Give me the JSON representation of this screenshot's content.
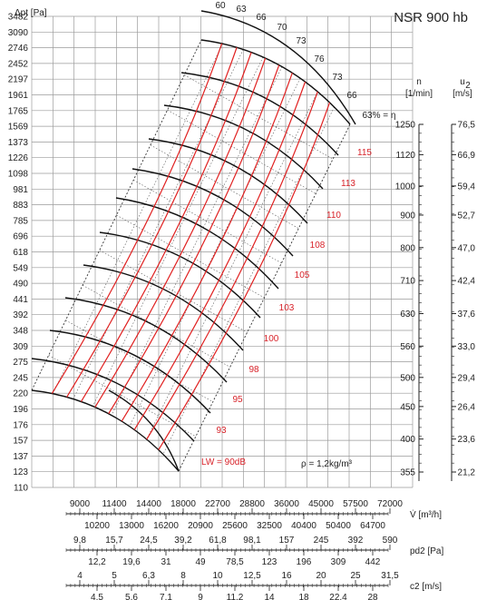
{
  "chart_data": {
    "type": "line",
    "title": "NSR 900 hb",
    "ylabel_left": "Δpt [Pa]",
    "yticks_left": [
      "3482",
      "3090",
      "2746",
      "2452",
      "2197",
      "1961",
      "1765",
      "1569",
      "1373",
      "1226",
      "1098",
      "981",
      "883",
      "785",
      "696",
      "618",
      "549",
      "490",
      "441",
      "392",
      "348",
      "309",
      "275",
      "245",
      "220",
      "196",
      "176",
      "157",
      "137",
      "123",
      "110"
    ],
    "right_axis_n": {
      "label_line1": "n",
      "label_line2": "[1/min]",
      "ticks": [
        "1250",
        "1120",
        "1000",
        "900",
        "800",
        "710",
        "630",
        "560",
        "500",
        "450",
        "400",
        "355"
      ]
    },
    "right_axis_u2": {
      "label_line1": "u",
      "label_sub": "2",
      "label_line2": "[m/s]",
      "ticks": [
        "76,5",
        "66,9",
        "59,4",
        "52,7",
        "47,0",
        "42,4",
        "37,6",
        "33,0",
        "29,4",
        "26,4",
        "23,6",
        "21,2"
      ]
    },
    "efficiency_labels": [
      "60",
      "63",
      "66",
      "70",
      "73",
      "76",
      "73",
      "66",
      "63% = η"
    ],
    "sound_labels": [
      "115",
      "113",
      "110",
      "108",
      "105",
      "103",
      "100",
      "98",
      "95",
      "93"
    ],
    "sound_base_label": "LW = 90dB",
    "density_label": "ρ = 1,2kg/m³",
    "flow_axis": {
      "label": "V̇ [m³/h]",
      "top": [
        "9000",
        "11400",
        "14400",
        "18000",
        "22700",
        "28800",
        "36000",
        "45000",
        "57500",
        "72000"
      ],
      "bottom": [
        "10200",
        "13000",
        "16200",
        "20900",
        "25600",
        "32500",
        "40400",
        "50400",
        "64700"
      ]
    },
    "pd_axis": {
      "label": "pd2 [Pa]",
      "top": [
        "9,8",
        "15,7",
        "24,5",
        "39,2",
        "61,8",
        "98,1",
        "157",
        "245",
        "392",
        "590"
      ],
      "bottom": [
        "12,2",
        "19,6",
        "31",
        "49",
        "78,5",
        "123",
        "196",
        "309",
        "442"
      ]
    },
    "c2_axis": {
      "label": "c2 [m/s]",
      "top": [
        "4",
        "5",
        "6,3",
        "8",
        "10",
        "12,5",
        "16",
        "20",
        "25",
        "31,5"
      ],
      "bottom": [
        "4,5",
        "5,6",
        "7,1",
        "9",
        "11,2",
        "14",
        "18",
        "22,4",
        "28"
      ]
    },
    "series": [
      {
        "n": 1250
      },
      {
        "n": 1120
      },
      {
        "n": 1000
      },
      {
        "n": 900
      },
      {
        "n": 800
      },
      {
        "n": 710
      },
      {
        "n": 630
      },
      {
        "n": 560
      },
      {
        "n": 500
      },
      {
        "n": 450
      },
      {
        "n": 400
      },
      {
        "n": 355
      }
    ]
  }
}
